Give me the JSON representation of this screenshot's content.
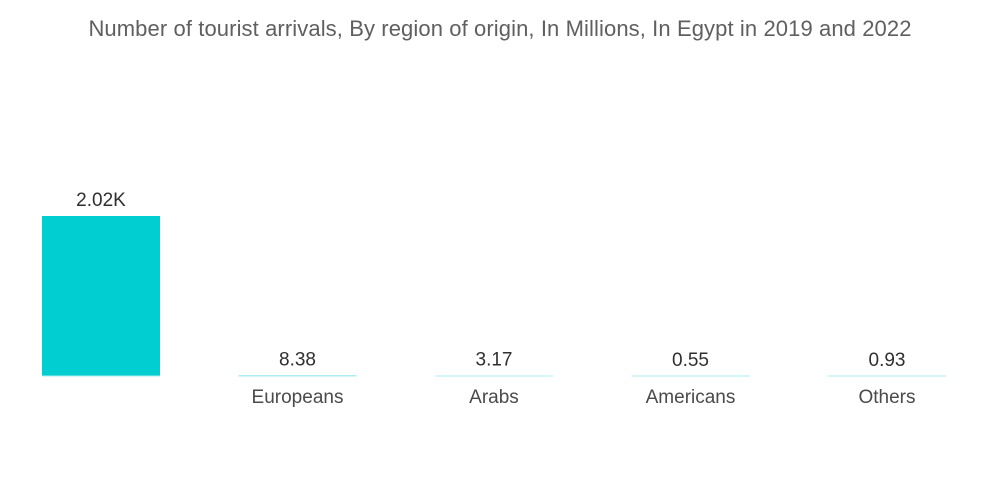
{
  "chart_data": {
    "type": "bar",
    "title": "Number of tourist arrivals, By region of origin, In Millions, In Egypt in 2019 and 2022",
    "xlabel": "",
    "ylabel": "",
    "categories": [
      "",
      "Europeans",
      "Arabs",
      "Americans",
      "Others"
    ],
    "values": [
      2020,
      8.38,
      3.17,
      0.55,
      0.93
    ],
    "value_labels": [
      "2.02K",
      "8.38",
      "3.17",
      "0.55",
      "0.93"
    ],
    "ylim": [
      0,
      2020
    ],
    "grid": false,
    "legend": "none",
    "bar_color": "#00ced1"
  }
}
